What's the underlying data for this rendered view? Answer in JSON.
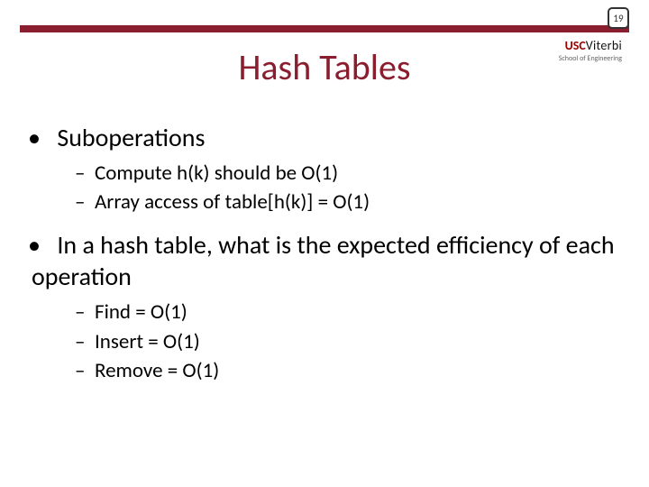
{
  "page_number": "19",
  "colors": {
    "accent": "#8a1e2e",
    "text": "#000000",
    "logo_usc": "#990000"
  },
  "logo": {
    "usc": "USC",
    "viterbi": "Viterbi",
    "subtitle": "School of Engineering"
  },
  "title": "Hash Tables",
  "bullets": [
    {
      "text": "Suboperations",
      "children": [
        "Compute h(k) should be O(1)",
        "Array access of table[h(k)] = O(1)"
      ]
    },
    {
      "text": "In a hash table, what is the expected efficiency of each operation",
      "children": [
        "Find = O(1)",
        "Insert = O(1)",
        "Remove = O(1)"
      ]
    }
  ]
}
